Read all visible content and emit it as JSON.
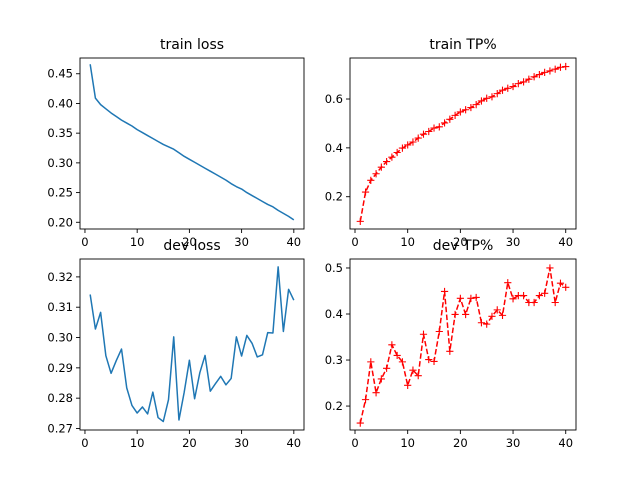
{
  "colors": {
    "line_blue": "#1f77b4",
    "line_red": "#ff0000",
    "axis": "#000000",
    "background": "#ffffff"
  },
  "chart_data": [
    {
      "type": "line",
      "title": "train loss",
      "xlim": [
        -0.95,
        41.95
      ],
      "ylim": [
        0.1887,
        0.4765
      ],
      "xticks": [
        0,
        10,
        20,
        30,
        40
      ],
      "yticks": [
        0.2,
        0.25,
        0.3,
        0.35,
        0.4,
        0.45
      ],
      "ytick_labels": [
        "0.20",
        "0.25",
        "0.30",
        "0.35",
        "0.40",
        "0.45"
      ],
      "series": [
        {
          "style": "solid",
          "color": "#1f77b4",
          "x": [
            1,
            2,
            3,
            4,
            5,
            6,
            7,
            8,
            9,
            10,
            11,
            12,
            13,
            14,
            15,
            16,
            17,
            18,
            19,
            20,
            21,
            22,
            23,
            24,
            25,
            26,
            27,
            28,
            29,
            30,
            31,
            32,
            33,
            34,
            35,
            36,
            37,
            38,
            39,
            40
          ],
          "y": [
            0.466,
            0.409,
            0.398,
            0.391,
            0.384,
            0.378,
            0.372,
            0.367,
            0.362,
            0.356,
            0.351,
            0.346,
            0.341,
            0.336,
            0.331,
            0.327,
            0.323,
            0.317,
            0.311,
            0.306,
            0.301,
            0.296,
            0.291,
            0.286,
            0.281,
            0.276,
            0.271,
            0.265,
            0.26,
            0.256,
            0.25,
            0.245,
            0.24,
            0.235,
            0.23,
            0.226,
            0.22,
            0.215,
            0.21,
            0.204
          ]
        }
      ]
    },
    {
      "type": "line",
      "title": "train TP%",
      "xlim": [
        -0.95,
        41.95
      ],
      "ylim": [
        0.0678,
        0.7679
      ],
      "xticks": [
        0,
        10,
        20,
        30,
        40
      ],
      "yticks": [
        0.2,
        0.4,
        0.6
      ],
      "ytick_labels": [
        "0.2",
        "0.4",
        "0.6"
      ],
      "series": [
        {
          "style": "dashed",
          "marker": "+",
          "color": "#ff0000",
          "x": [
            1,
            2,
            3,
            4,
            5,
            6,
            7,
            8,
            9,
            10,
            11,
            12,
            13,
            14,
            15,
            16,
            17,
            18,
            19,
            20,
            21,
            22,
            23,
            24,
            25,
            26,
            27,
            28,
            29,
            30,
            31,
            32,
            33,
            34,
            35,
            36,
            37,
            38,
            39,
            40
          ],
          "y": [
            0.099,
            0.219,
            0.267,
            0.294,
            0.321,
            0.344,
            0.362,
            0.381,
            0.399,
            0.412,
            0.424,
            0.44,
            0.456,
            0.467,
            0.481,
            0.486,
            0.502,
            0.517,
            0.533,
            0.547,
            0.556,
            0.565,
            0.577,
            0.592,
            0.603,
            0.609,
            0.622,
            0.636,
            0.644,
            0.651,
            0.663,
            0.67,
            0.681,
            0.691,
            0.7,
            0.709,
            0.715,
            0.722,
            0.73,
            0.733
          ]
        }
      ]
    },
    {
      "type": "line",
      "title": "dev loss",
      "xlim": [
        -0.95,
        41.95
      ],
      "ylim": [
        0.2695,
        0.3259
      ],
      "xticks": [
        0,
        10,
        20,
        30,
        40
      ],
      "yticks": [
        0.27,
        0.28,
        0.29,
        0.3,
        0.31,
        0.32
      ],
      "ytick_labels": [
        "0.27",
        "0.28",
        "0.29",
        "0.30",
        "0.31",
        "0.32"
      ],
      "series": [
        {
          "style": "solid",
          "color": "#1f77b4",
          "x": [
            1,
            2,
            3,
            4,
            5,
            6,
            7,
            8,
            9,
            10,
            11,
            12,
            13,
            14,
            15,
            16,
            17,
            18,
            19,
            20,
            21,
            22,
            23,
            24,
            25,
            26,
            27,
            28,
            29,
            30,
            31,
            32,
            33,
            34,
            35,
            36,
            37,
            38,
            39,
            40
          ],
          "y": [
            0.3142,
            0.3028,
            0.3083,
            0.294,
            0.2882,
            0.2924,
            0.2962,
            0.2834,
            0.2776,
            0.2751,
            0.2771,
            0.2748,
            0.282,
            0.2736,
            0.2723,
            0.2795,
            0.3002,
            0.2728,
            0.2819,
            0.2925,
            0.2798,
            0.2884,
            0.2941,
            0.2823,
            0.2848,
            0.2872,
            0.2844,
            0.2865,
            0.3002,
            0.2939,
            0.3007,
            0.2981,
            0.2936,
            0.2943,
            0.3016,
            0.3015,
            0.3233,
            0.302,
            0.3159,
            0.3123
          ]
        }
      ]
    },
    {
      "type": "line",
      "title": "dev TP%",
      "xlim": [
        -0.95,
        41.95
      ],
      "ylim": [
        0.148,
        0.5195
      ],
      "xticks": [
        0,
        10,
        20,
        30,
        40
      ],
      "yticks": [
        0.2,
        0.3,
        0.4,
        0.5
      ],
      "ytick_labels": [
        "0.2",
        "0.3",
        "0.4",
        "0.5"
      ],
      "series": [
        {
          "style": "dashed",
          "marker": "+",
          "color": "#ff0000",
          "x": [
            1,
            2,
            3,
            4,
            5,
            6,
            7,
            8,
            9,
            10,
            11,
            12,
            13,
            14,
            15,
            16,
            17,
            18,
            19,
            20,
            21,
            22,
            23,
            24,
            25,
            26,
            27,
            28,
            29,
            30,
            31,
            32,
            33,
            34,
            35,
            36,
            37,
            38,
            39,
            40
          ],
          "y": [
            0.163,
            0.214,
            0.296,
            0.229,
            0.259,
            0.282,
            0.333,
            0.31,
            0.296,
            0.245,
            0.278,
            0.266,
            0.356,
            0.301,
            0.297,
            0.362,
            0.449,
            0.319,
            0.399,
            0.434,
            0.399,
            0.434,
            0.436,
            0.381,
            0.378,
            0.395,
            0.409,
            0.397,
            0.468,
            0.433,
            0.44,
            0.44,
            0.425,
            0.425,
            0.44,
            0.445,
            0.5,
            0.425,
            0.467,
            0.458
          ]
        }
      ]
    }
  ]
}
